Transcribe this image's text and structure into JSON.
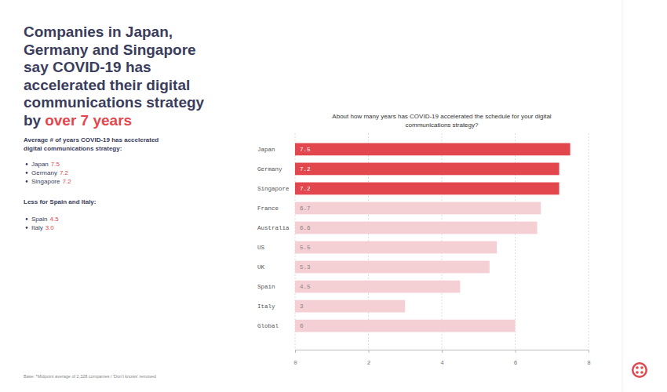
{
  "headline": {
    "lines": [
      "Companies in Japan,",
      "Germany and Singapore",
      "say COVID-19 has",
      "accelerated their digital",
      "communications strategy"
    ],
    "last_line": "by",
    "highlight": "over 7 years"
  },
  "summary": {
    "heading": [
      "Average # of years COVID-19 has accelerated",
      "digital communications strategy:"
    ],
    "top": [
      {
        "label": "Japan",
        "value": "7.5"
      },
      {
        "label": "Germany",
        "value": "7.2"
      },
      {
        "label": "Singapore",
        "value": "7.2"
      }
    ],
    "less_heading": "Less for Spain and Italy:",
    "less": [
      {
        "label": "Spain",
        "value": "4.5"
      },
      {
        "label": "Italy",
        "value": "3.0"
      }
    ]
  },
  "footnote": "Base: *Midpoint average of 2,328 companies / 'Don't knows' removed",
  "chart_data": {
    "type": "bar",
    "orientation": "horizontal",
    "title": "About how many years has COVID-19 accelerated the schedule for your digital communications strategy?",
    "categories": [
      "Japan",
      "Germany",
      "Singapore",
      "France",
      "Australia",
      "US",
      "UK",
      "Spain",
      "Italy",
      "Global"
    ],
    "values": [
      7.5,
      7.2,
      7.2,
      6.7,
      6.6,
      5.5,
      5.3,
      4.5,
      3,
      6
    ],
    "colors": [
      "#e2474e",
      "#e2474e",
      "#e2474e",
      "#f4cfd3",
      "#f4cfd3",
      "#f4cfd3",
      "#f4cfd3",
      "#f4cfd3",
      "#f4cfd3",
      "#f4cfd3"
    ],
    "xlim": [
      0,
      8
    ],
    "xticks": [
      0,
      2,
      4,
      6,
      8
    ],
    "grid": true,
    "data_labels": true
  }
}
